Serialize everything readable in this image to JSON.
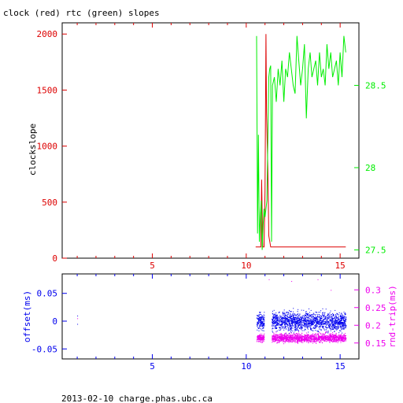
{
  "title": "clock (red) rtc (green) slopes",
  "footer": "2013-02-10 charge.phas.ubc.ca",
  "colors": {
    "red": "#dd0000",
    "green": "#00ee00",
    "blue": "#0000ee",
    "magenta": "#ee00ee",
    "axis": "#000000"
  },
  "chart_data": [
    {
      "type": "line",
      "xlim": [
        0.2,
        16
      ],
      "x_ticks": [
        5,
        10,
        15
      ],
      "y_left": {
        "label": "clockslope",
        "lim": [
          0,
          2100
        ],
        "ticks": [
          0,
          500,
          1000,
          1500,
          2000
        ]
      },
      "y_right": {
        "label": "",
        "lim": [
          27.45,
          28.88
        ],
        "ticks": [
          27.5,
          28,
          28.5
        ]
      },
      "series": [
        {
          "name": "clock",
          "axis": "left",
          "x": [
            10.5,
            10.78,
            10.82,
            10.88,
            10.95,
            11.0,
            11.05,
            11.08,
            11.15,
            11.2,
            11.3,
            15.3
          ],
          "y": [
            100,
            100,
            700,
            100,
            100,
            600,
            2000,
            1300,
            800,
            200,
            100,
            100
          ]
        },
        {
          "name": "rtc",
          "axis": "right",
          "x": [
            10.55,
            10.6,
            10.65,
            10.7,
            10.75,
            10.8,
            10.85,
            10.9,
            10.95,
            11.0,
            11.05,
            11.1,
            11.2,
            11.25,
            11.3,
            11.35,
            11.4,
            11.5,
            11.6,
            11.7,
            11.8,
            11.9,
            12.0,
            12.1,
            12.2,
            12.3,
            12.4,
            12.5,
            12.6,
            12.7,
            12.8,
            12.9,
            13.0,
            13.1,
            13.2,
            13.3,
            13.4,
            13.5,
            13.6,
            13.7,
            13.8,
            13.9,
            14.0,
            14.1,
            14.2,
            14.3,
            14.4,
            14.5,
            14.6,
            14.7,
            14.8,
            14.9,
            15.0,
            15.1,
            15.2,
            15.3
          ],
          "y": [
            28.8,
            27.6,
            28.2,
            27.55,
            27.7,
            27.8,
            27.5,
            27.65,
            27.75,
            27.7,
            27.75,
            27.8,
            28.55,
            28.6,
            28.62,
            27.55,
            28.5,
            28.55,
            28.4,
            28.6,
            28.5,
            28.65,
            28.4,
            28.6,
            28.55,
            28.7,
            28.6,
            28.5,
            28.45,
            28.8,
            28.65,
            28.5,
            28.6,
            28.75,
            28.3,
            28.6,
            28.7,
            28.55,
            28.6,
            28.65,
            28.5,
            28.7,
            28.55,
            28.6,
            28.5,
            28.75,
            28.6,
            28.7,
            28.55,
            28.6,
            28.65,
            28.5,
            28.7,
            28.55,
            28.8,
            28.7
          ]
        }
      ]
    },
    {
      "type": "scatter",
      "xlim": [
        0.2,
        16
      ],
      "x_ticks": [
        5,
        10,
        15
      ],
      "y_left": {
        "label": "offset(ms)",
        "lim": [
          -0.068,
          0.085
        ],
        "ticks": [
          -0.05,
          0,
          0.05
        ]
      },
      "y_right": {
        "label": "rnd-trip(ms)",
        "lim": [
          0.105,
          0.345
        ],
        "ticks": [
          0.15,
          0.2,
          0.25,
          0.3
        ]
      },
      "series": [
        {
          "name": "offset",
          "axis": "left",
          "segments": [
            {
              "x": [
                10.55,
                10.95
              ],
              "center": 0.0,
              "spread": 0.025
            },
            {
              "x": [
                11.35,
                15.3
              ],
              "center": 0.0,
              "spread": 0.028
            }
          ],
          "outliers": {
            "x": [
              1.0,
              1.0
            ],
            "y": [
              0.01,
              -0.005
            ]
          }
        },
        {
          "name": "rnd-trip",
          "axis": "right",
          "segments": [
            {
              "x": [
                10.55,
                10.95
              ],
              "center": 0.165,
              "spread": 0.018
            },
            {
              "x": [
                11.35,
                15.3
              ],
              "center": 0.165,
              "spread": 0.02
            }
          ],
          "outliers": {
            "x": [
              1.0,
              11.2,
              12.4,
              13.8,
              14.5
            ],
            "y": [
              0.22,
              0.33,
              0.325,
              0.33,
              0.3
            ]
          }
        }
      ]
    }
  ]
}
